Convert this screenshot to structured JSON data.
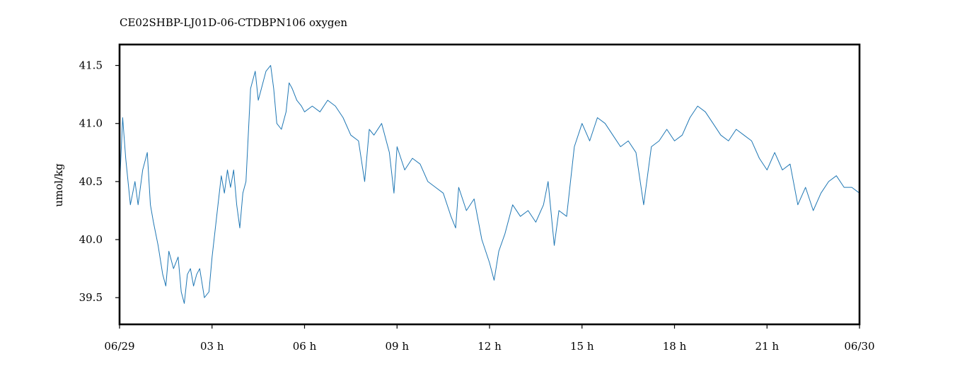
{
  "chart_data": {
    "type": "line",
    "title": "CE02SHBP-LJ01D-06-CTDBPN106 oxygen",
    "xlabel": "",
    "ylabel": "umol/kg",
    "xlim": [
      0,
      24
    ],
    "ylim": [
      39.27,
      41.68
    ],
    "x_ticks": [
      {
        "value": 0,
        "label": "06/29"
      },
      {
        "value": 3,
        "label": "03 h"
      },
      {
        "value": 6,
        "label": "06 h"
      },
      {
        "value": 9,
        "label": "09 h"
      },
      {
        "value": 12,
        "label": "12 h"
      },
      {
        "value": 15,
        "label": "15 h"
      },
      {
        "value": 18,
        "label": "18 h"
      },
      {
        "value": 21,
        "label": "21 h"
      },
      {
        "value": 24,
        "label": "06/30"
      }
    ],
    "y_ticks": [
      {
        "value": 39.5,
        "label": "39.5"
      },
      {
        "value": 40.0,
        "label": "40.0"
      },
      {
        "value": 40.5,
        "label": "40.5"
      },
      {
        "value": 41.0,
        "label": "41.0"
      },
      {
        "value": 41.5,
        "label": "41.5"
      }
    ],
    "grid": false,
    "series": [
      {
        "color": "#1f77b4",
        "x_unit": "hours since 06/29 00:00",
        "x": [
          0.0,
          0.1,
          0.2,
          0.35,
          0.5,
          0.6,
          0.75,
          0.9,
          1.0,
          1.1,
          1.25,
          1.4,
          1.5,
          1.6,
          1.75,
          1.9,
          2.0,
          2.1,
          2.2,
          2.3,
          2.4,
          2.5,
          2.6,
          2.75,
          2.9,
          3.0,
          3.15,
          3.3,
          3.4,
          3.5,
          3.6,
          3.7,
          3.8,
          3.9,
          4.0,
          4.1,
          4.25,
          4.4,
          4.5,
          4.6,
          4.75,
          4.9,
          5.0,
          5.1,
          5.25,
          5.4,
          5.5,
          5.6,
          5.75,
          5.9,
          6.0,
          6.25,
          6.5,
          6.75,
          7.0,
          7.25,
          7.5,
          7.75,
          7.95,
          8.1,
          8.25,
          8.5,
          8.75,
          8.9,
          9.0,
          9.25,
          9.5,
          9.75,
          10.0,
          10.25,
          10.5,
          10.75,
          10.9,
          11.0,
          11.25,
          11.5,
          11.75,
          12.0,
          12.15,
          12.3,
          12.5,
          12.75,
          13.0,
          13.25,
          13.5,
          13.75,
          13.9,
          14.1,
          14.25,
          14.5,
          14.75,
          15.0,
          15.25,
          15.5,
          15.75,
          16.0,
          16.25,
          16.5,
          16.75,
          17.0,
          17.25,
          17.5,
          17.75,
          18.0,
          18.25,
          18.5,
          18.75,
          19.0,
          19.25,
          19.5,
          19.75,
          20.0,
          20.25,
          20.5,
          20.75,
          21.0,
          21.25,
          21.5,
          21.75,
          22.0,
          22.25,
          22.5,
          22.75,
          23.0,
          23.25,
          23.5,
          23.75,
          24.0
        ],
        "y": [
          40.45,
          41.05,
          40.7,
          40.3,
          40.5,
          40.3,
          40.6,
          40.75,
          40.3,
          40.15,
          39.95,
          39.7,
          39.6,
          39.9,
          39.75,
          39.85,
          39.55,
          39.45,
          39.7,
          39.75,
          39.6,
          39.7,
          39.75,
          39.5,
          39.55,
          39.85,
          40.2,
          40.55,
          40.4,
          40.6,
          40.45,
          40.6,
          40.3,
          40.1,
          40.4,
          40.5,
          41.3,
          41.45,
          41.2,
          41.3,
          41.45,
          41.5,
          41.3,
          41.0,
          40.95,
          41.1,
          41.35,
          41.3,
          41.2,
          41.15,
          41.1,
          41.15,
          41.1,
          41.2,
          41.15,
          41.05,
          40.9,
          40.85,
          40.5,
          40.95,
          40.9,
          41.0,
          40.75,
          40.4,
          40.8,
          40.6,
          40.7,
          40.65,
          40.5,
          40.45,
          40.4,
          40.2,
          40.1,
          40.45,
          40.25,
          40.35,
          40.0,
          39.8,
          39.65,
          39.9,
          40.05,
          40.3,
          40.2,
          40.25,
          40.15,
          40.3,
          40.5,
          39.95,
          40.25,
          40.2,
          40.8,
          41.0,
          40.85,
          41.05,
          41.0,
          40.9,
          40.8,
          40.85,
          40.75,
          40.3,
          40.8,
          40.85,
          40.95,
          40.85,
          40.9,
          41.05,
          41.15,
          41.1,
          41.0,
          40.9,
          40.85,
          40.95,
          40.9,
          40.85,
          40.7,
          40.6,
          40.75,
          40.6,
          40.65,
          40.3,
          40.45,
          40.25,
          40.4,
          40.5,
          40.55,
          40.45,
          40.45,
          40.4
        ]
      }
    ]
  }
}
